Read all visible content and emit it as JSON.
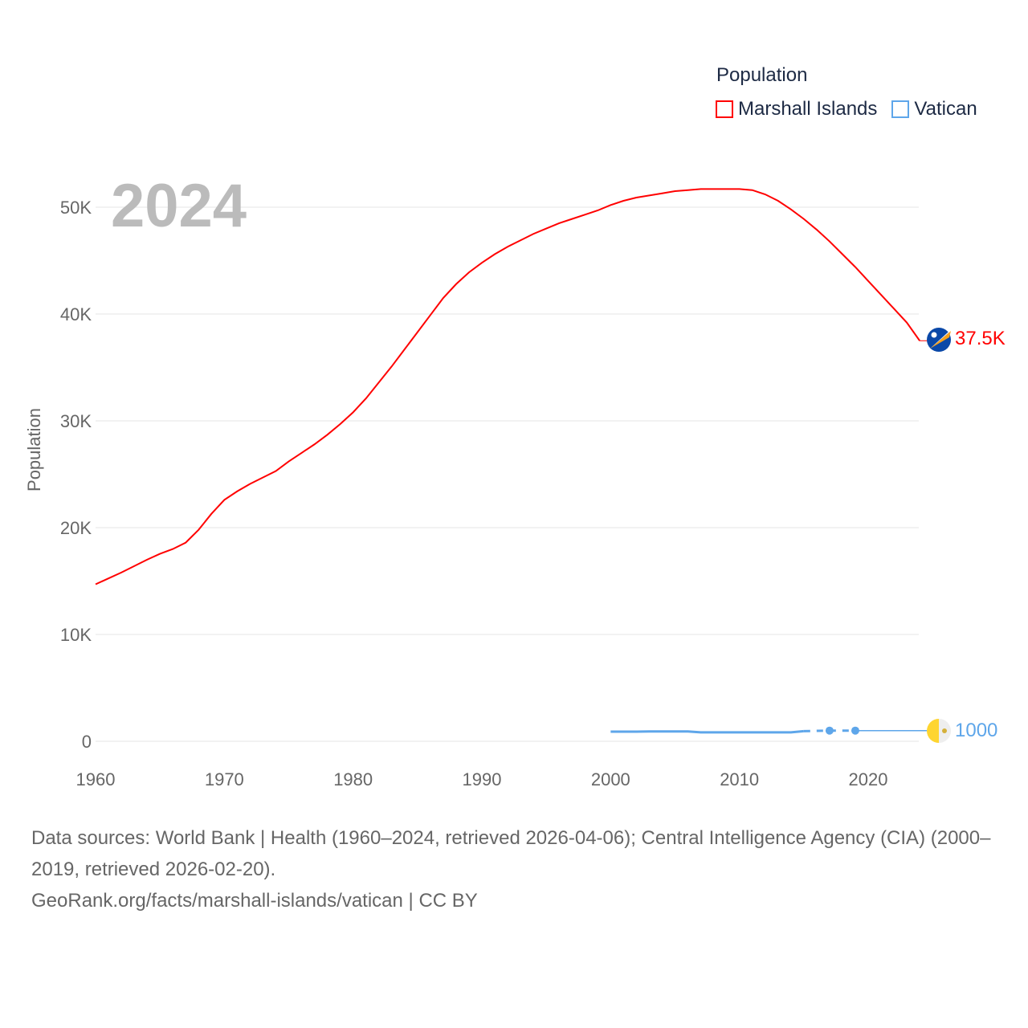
{
  "chart_data": {
    "type": "line",
    "title": "",
    "year_label": "2024",
    "ylabel": "Population",
    "xlabel": "",
    "xlim": [
      1960,
      2024
    ],
    "ylim": [
      0,
      52000
    ],
    "x_ticks": [
      "1960",
      "1970",
      "1980",
      "1990",
      "2000",
      "2010",
      "2020"
    ],
    "x_tick_values": [
      1960,
      1970,
      1980,
      1990,
      2000,
      2010,
      2020
    ],
    "y_ticks": [
      "0",
      "10K",
      "20K",
      "30K",
      "40K",
      "50K"
    ],
    "y_tick_values": [
      0,
      10000,
      20000,
      30000,
      40000,
      50000
    ],
    "grid": true,
    "legend_title": "Population",
    "legend_position": "top-right",
    "series": [
      {
        "name": "Marshall Islands",
        "color": "#ff0000",
        "end_label": "37.5K",
        "flag_icon": "marshall-islands-flag",
        "x": [
          1960,
          1961,
          1962,
          1963,
          1964,
          1965,
          1966,
          1967,
          1968,
          1969,
          1970,
          1971,
          1972,
          1973,
          1974,
          1975,
          1976,
          1977,
          1978,
          1979,
          1980,
          1981,
          1982,
          1983,
          1984,
          1985,
          1986,
          1987,
          1988,
          1989,
          1990,
          1991,
          1992,
          1993,
          1994,
          1995,
          1996,
          1997,
          1998,
          1999,
          2000,
          2001,
          2002,
          2003,
          2004,
          2005,
          2006,
          2007,
          2008,
          2009,
          2010,
          2011,
          2012,
          2013,
          2014,
          2015,
          2016,
          2017,
          2018,
          2019,
          2020,
          2021,
          2022,
          2023,
          2024
        ],
        "values": [
          14700,
          15250,
          15800,
          16400,
          17000,
          17550,
          18000,
          18600,
          19800,
          21300,
          22600,
          23400,
          24100,
          24700,
          25300,
          26200,
          27000,
          27800,
          28700,
          29700,
          30800,
          32100,
          33600,
          35100,
          36700,
          38300,
          39900,
          41500,
          42800,
          43900,
          44800,
          45600,
          46300,
          46900,
          47500,
          48000,
          48500,
          48900,
          49300,
          49700,
          50200,
          50600,
          50900,
          51100,
          51300,
          51500,
          51600,
          51700,
          51700,
          51700,
          51700,
          51600,
          51200,
          50600,
          49800,
          48900,
          47900,
          46800,
          45600,
          44400,
          43100,
          41800,
          40500,
          39200,
          37500
        ]
      },
      {
        "name": "Vatican",
        "color": "#5ea6ea",
        "end_label": "1000",
        "flag_icon": "vatican-flag",
        "x": [
          2000,
          2001,
          2002,
          2003,
          2004,
          2005,
          2006,
          2007,
          2008,
          2009,
          2010,
          2011,
          2012,
          2013,
          2014,
          2015,
          2017,
          2019
        ],
        "values": [
          900,
          900,
          900,
          920,
          920,
          920,
          920,
          840,
          840,
          840,
          840,
          840,
          840,
          840,
          840,
          950,
          1000,
          1000
        ],
        "projection_to": 2024
      }
    ]
  },
  "source": {
    "line1": "Data sources: World Bank | Health (1960–2024, retrieved 2026-04-06); Central Intelligence Agency (CIA) (2000–2019, retrieved 2026-02-20).",
    "line2": "GeoRank.org/facts/marshall-islands/vatican | CC BY"
  }
}
